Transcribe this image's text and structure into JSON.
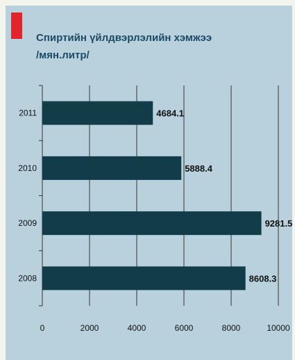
{
  "colors": {
    "panel_background": "#b8d1dd",
    "page_background": "#f4f4ef",
    "accent": "#e0262c",
    "title": "#1d4a66",
    "bar": "#123d48",
    "axis": "#333333"
  },
  "header": {
    "title_line1": "Спиртийн үйлдвэрлэлийн хэмжээ",
    "title_line2": "/мян.литр/"
  },
  "chart_data": {
    "type": "bar",
    "orientation": "horizontal",
    "title": "Спиртийн үйлдвэрлэлийн хэмжээ /мян.литр/",
    "categories": [
      "2011",
      "2010",
      "2009",
      "2008"
    ],
    "values": [
      4684.1,
      5888.4,
      9281.5,
      8608.3
    ],
    "data_labels": [
      "4684.1",
      "5888.4",
      "9281.5",
      "8608.3"
    ],
    "xlim": [
      0,
      10000
    ],
    "xticks": [
      0,
      2000,
      4000,
      6000,
      8000,
      10000
    ],
    "xtick_labels": [
      "0",
      "2000",
      "4000",
      "6000",
      "8000",
      "10000"
    ],
    "grid": "vertical",
    "legend": "none"
  }
}
